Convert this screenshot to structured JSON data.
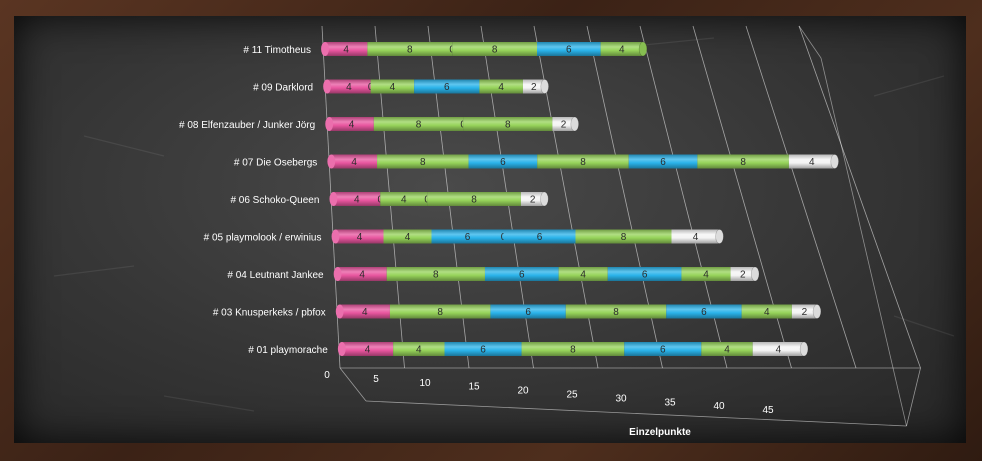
{
  "chart_data": {
    "type": "bar",
    "orientation": "horizontal",
    "stacked": true,
    "style": "3d-cylinder",
    "xlabel": "Einzelpunkte",
    "ylabel": "",
    "title": "",
    "xlim": [
      0,
      45
    ],
    "xticks": [
      0,
      5,
      10,
      15,
      20,
      25,
      30,
      35,
      40,
      45
    ],
    "grid": true,
    "legend": "none",
    "colors": {
      "pink": "#e8569f",
      "green": "#96d35a",
      "blue": "#2ab3ea",
      "white": "#f4f4f4"
    },
    "categories": [
      "# 11 Timotheus",
      "# 09 Darklord",
      "# 08 Elfenzauber / Junker Jörg",
      "# 07 Die Osebergs",
      "# 06 Schoko-Queen",
      "# 05 playmolook / erwinius",
      "# 04 Leutnant Jankee",
      "# 03 Knusperkeks / pbfox",
      "# 01 playmorache"
    ],
    "rows": [
      {
        "segments": [
          {
            "v": 4,
            "c": "pink"
          },
          {
            "v": 8,
            "c": "green"
          },
          {
            "v": 0,
            "c": "green"
          },
          {
            "v": 8,
            "c": "green"
          },
          {
            "v": 6,
            "c": "blue"
          },
          {
            "v": 4,
            "c": "green"
          }
        ]
      },
      {
        "segments": [
          {
            "v": 4,
            "c": "pink"
          },
          {
            "v": 0,
            "c": "green"
          },
          {
            "v": 4,
            "c": "green"
          },
          {
            "v": 6,
            "c": "blue"
          },
          {
            "v": 4,
            "c": "green"
          },
          {
            "v": 2,
            "c": "white"
          }
        ]
      },
      {
        "segments": [
          {
            "v": 4,
            "c": "pink"
          },
          {
            "v": 8,
            "c": "green"
          },
          {
            "v": 0,
            "c": "green"
          },
          {
            "v": 8,
            "c": "green"
          },
          {
            "v": 2,
            "c": "white"
          }
        ]
      },
      {
        "segments": [
          {
            "v": 4,
            "c": "pink"
          },
          {
            "v": 8,
            "c": "green"
          },
          {
            "v": 6,
            "c": "blue"
          },
          {
            "v": 8,
            "c": "green"
          },
          {
            "v": 6,
            "c": "blue"
          },
          {
            "v": 8,
            "c": "green"
          },
          {
            "v": 4,
            "c": "white"
          }
        ]
      },
      {
        "segments": [
          {
            "v": 4,
            "c": "pink"
          },
          {
            "v": 0,
            "c": "green"
          },
          {
            "v": 4,
            "c": "green"
          },
          {
            "v": 0,
            "c": "green"
          },
          {
            "v": 8,
            "c": "green"
          },
          {
            "v": 2,
            "c": "white"
          }
        ]
      },
      {
        "segments": [
          {
            "v": 4,
            "c": "pink"
          },
          {
            "v": 4,
            "c": "green"
          },
          {
            "v": 6,
            "c": "blue"
          },
          {
            "v": 0,
            "c": "blue"
          },
          {
            "v": 6,
            "c": "blue"
          },
          {
            "v": 8,
            "c": "green"
          },
          {
            "v": 4,
            "c": "white"
          }
        ]
      },
      {
        "segments": [
          {
            "v": 4,
            "c": "pink"
          },
          {
            "v": 8,
            "c": "green"
          },
          {
            "v": 6,
            "c": "blue"
          },
          {
            "v": 4,
            "c": "green"
          },
          {
            "v": 6,
            "c": "blue"
          },
          {
            "v": 4,
            "c": "green"
          },
          {
            "v": 2,
            "c": "white"
          }
        ]
      },
      {
        "segments": [
          {
            "v": 4,
            "c": "pink"
          },
          {
            "v": 8,
            "c": "green"
          },
          {
            "v": 6,
            "c": "blue"
          },
          {
            "v": 8,
            "c": "green"
          },
          {
            "v": 6,
            "c": "blue"
          },
          {
            "v": 4,
            "c": "green"
          },
          {
            "v": 2,
            "c": "white"
          }
        ]
      },
      {
        "segments": [
          {
            "v": 4,
            "c": "pink"
          },
          {
            "v": 4,
            "c": "green"
          },
          {
            "v": 6,
            "c": "blue"
          },
          {
            "v": 8,
            "c": "green"
          },
          {
            "v": 6,
            "c": "blue"
          },
          {
            "v": 4,
            "c": "green"
          },
          {
            "v": 4,
            "c": "white"
          }
        ]
      }
    ]
  }
}
